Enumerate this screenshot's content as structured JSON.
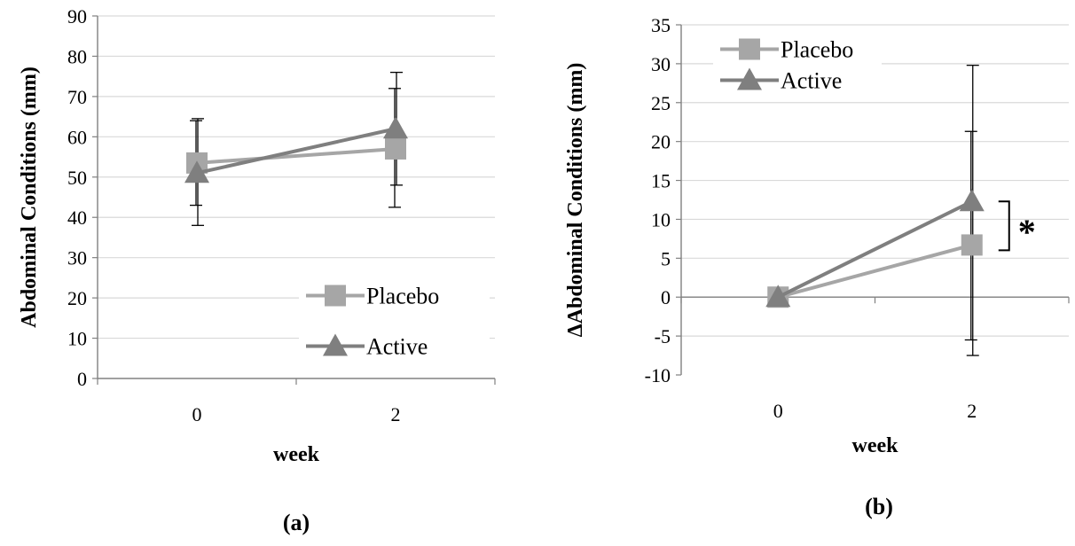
{
  "chart_data": [
    {
      "type": "line",
      "panel_label": "(a)",
      "panel_letter": "a",
      "xlabel": "week",
      "ylabel": "Abdominal Conditions (mm)",
      "categories": [
        "0",
        "2"
      ],
      "ylim": [
        0,
        90
      ],
      "yticks": [
        0,
        10,
        20,
        30,
        40,
        50,
        60,
        70,
        80,
        90
      ],
      "grid": true,
      "legend_position": "bottom-right",
      "series": [
        {
          "name": "Placebo",
          "marker": "square",
          "color": "#a6a6a6",
          "values": [
            53.5,
            57
          ],
          "error_low": [
            43,
            42.5
          ],
          "error_high": [
            64,
            72
          ]
        },
        {
          "name": "Active",
          "marker": "triangle",
          "color": "#7f7f7f",
          "values": [
            51,
            62
          ],
          "error_low": [
            38,
            48
          ],
          "error_high": [
            64.5,
            76
          ]
        }
      ]
    },
    {
      "type": "line",
      "panel_label": "(b)",
      "panel_letter": "b",
      "xlabel": "week",
      "ylabel": "ΔAbdominal Conditions (mm)",
      "categories": [
        "0",
        "2"
      ],
      "ylim": [
        -10,
        35
      ],
      "yticks": [
        -10,
        -5,
        0,
        5,
        10,
        15,
        20,
        25,
        30,
        35
      ],
      "yticklabels": [
        "-10",
        "-5",
        "0",
        "5",
        "10",
        "15",
        "20",
        "25",
        "30",
        "35"
      ],
      "grid": true,
      "legend_position": "top-left",
      "significance": {
        "symbol": "*",
        "between": [
          "Placebo",
          "Active"
        ],
        "at": "2"
      },
      "series": [
        {
          "name": "Placebo",
          "marker": "square",
          "color": "#a6a6a6",
          "values": [
            0,
            6.7
          ],
          "error_low": [
            0,
            -5.5
          ],
          "error_high": [
            0,
            21.3
          ]
        },
        {
          "name": "Active",
          "marker": "triangle",
          "color": "#7f7f7f",
          "values": [
            0,
            12.3
          ],
          "error_low": [
            0,
            -7.5
          ],
          "error_high": [
            0,
            29.8
          ]
        }
      ]
    }
  ]
}
